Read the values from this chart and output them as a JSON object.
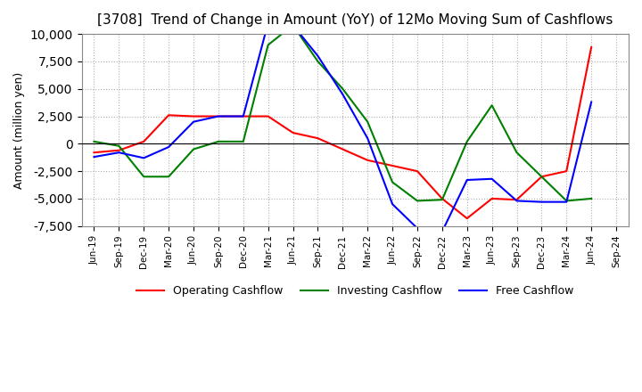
{
  "title": "[3708]  Trend of Change in Amount (YoY) of 12Mo Moving Sum of Cashflows",
  "ylabel": "Amount (million yen)",
  "ylim": [
    -7500,
    10000
  ],
  "yticks": [
    -7500,
    -5000,
    -2500,
    0,
    2500,
    5000,
    7500,
    10000
  ],
  "x_labels": [
    "Jun-19",
    "Sep-19",
    "Dec-19",
    "Mar-20",
    "Jun-20",
    "Sep-20",
    "Dec-20",
    "Mar-21",
    "Jun-21",
    "Sep-21",
    "Dec-21",
    "Mar-22",
    "Jun-22",
    "Sep-22",
    "Dec-22",
    "Mar-23",
    "Jun-23",
    "Sep-23",
    "Dec-23",
    "Mar-24",
    "Jun-24",
    "Sep-24"
  ],
  "operating": [
    -800,
    -600,
    200,
    2600,
    2500,
    2500,
    2500,
    2500,
    1000,
    500,
    -500,
    -1500,
    -2000,
    -2500,
    -5000,
    -6800,
    -5000,
    -5100,
    -3000,
    -2500,
    8800,
    null
  ],
  "investing": [
    200,
    -200,
    -3000,
    -3000,
    -500,
    200,
    200,
    9000,
    10800,
    7500,
    5000,
    2000,
    -3500,
    -5200,
    -5100,
    200,
    3500,
    -800,
    -3000,
    -5200,
    -5000,
    null
  ],
  "free": [
    -1200,
    -800,
    -1300,
    -300,
    2000,
    2500,
    2500,
    11000,
    10800,
    8000,
    4500,
    500,
    -5500,
    -7700,
    -8000,
    -3300,
    -3200,
    -5200,
    -5300,
    -5300,
    3800,
    null
  ],
  "op_color": "#ff0000",
  "inv_color": "#008000",
  "free_color": "#0000ff",
  "background_color": "#ffffff",
  "grid_color": "#b0b0b0",
  "title_fontsize": 11,
  "legend_labels": [
    "Operating Cashflow",
    "Investing Cashflow",
    "Free Cashflow"
  ]
}
